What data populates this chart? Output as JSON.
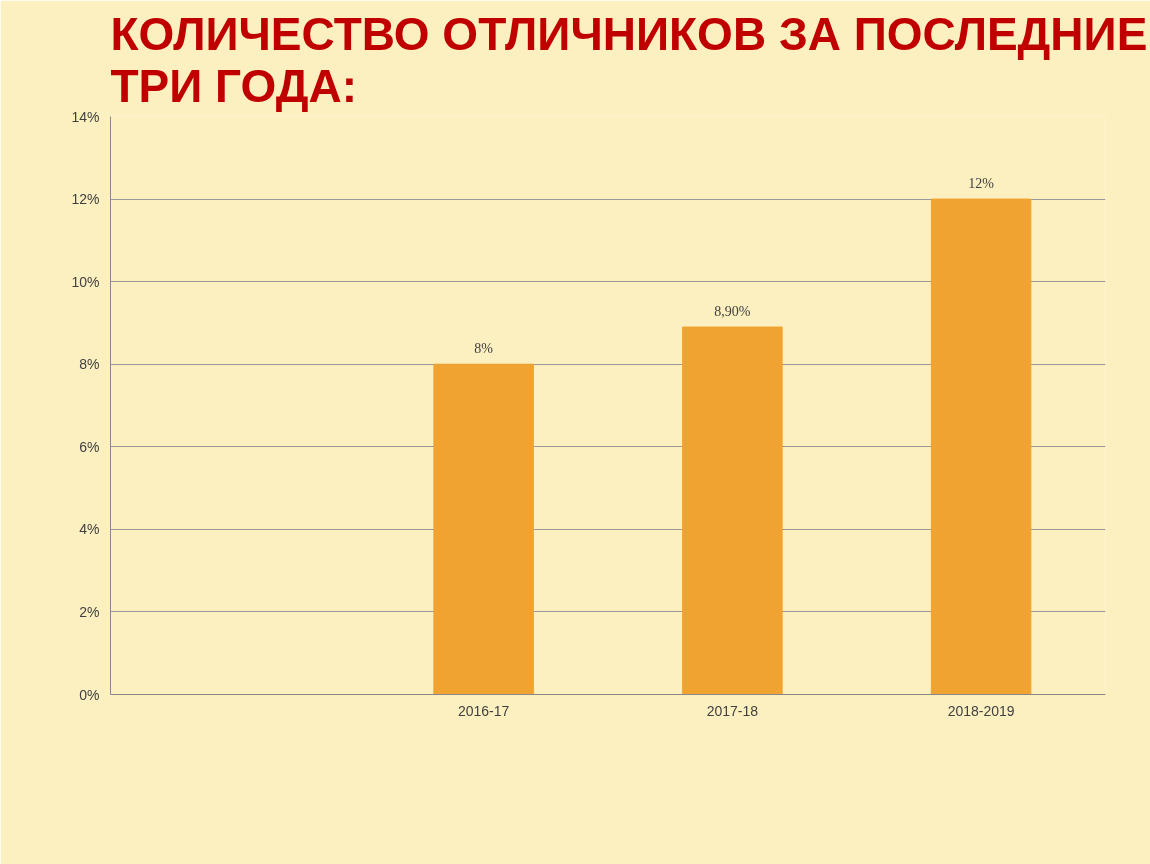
{
  "chart_data": {
    "type": "bar",
    "title": "КОЛИЧЕСТВО ОТЛИЧНИКОВ ЗА ПОСЛЕДНИЕ\nТРИ ГОДА:",
    "categories": [
      null,
      "2016-17",
      "2017-18",
      "2018-2019"
    ],
    "values": [
      null,
      8,
      8.9,
      12
    ],
    "value_labels": [
      null,
      "8%",
      "8,90%",
      "12%"
    ],
    "color": "#f0a330",
    "ylim": [
      0,
      14
    ],
    "yticks": [
      {
        "value": 0,
        "label": "0%"
      },
      {
        "value": 2,
        "label": "2%"
      },
      {
        "value": 4,
        "label": "4%"
      },
      {
        "value": 6,
        "label": "6%"
      },
      {
        "value": 8,
        "label": "8%"
      },
      {
        "value": 10,
        "label": "10%"
      },
      {
        "value": 12,
        "label": "12%"
      },
      {
        "value": 14,
        "label": "14%"
      }
    ],
    "grid": "y"
  }
}
